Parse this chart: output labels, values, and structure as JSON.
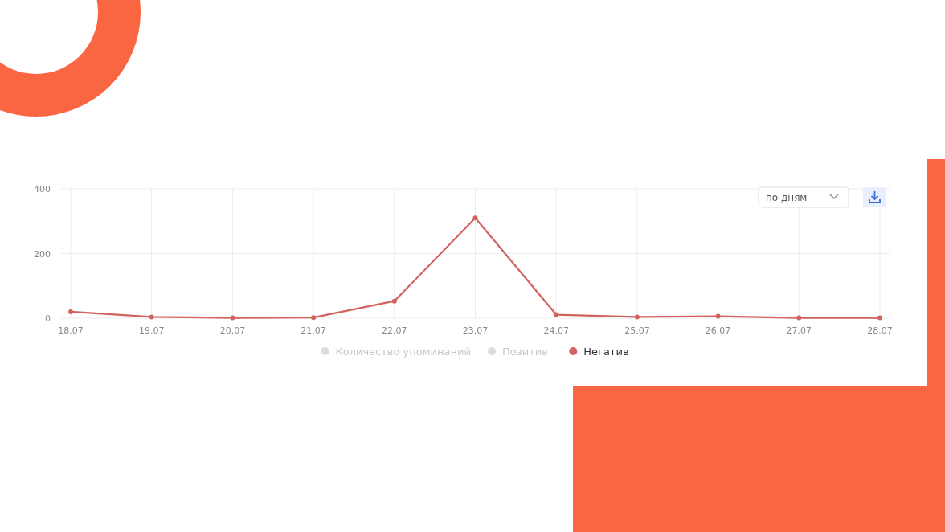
{
  "chart_data": {
    "type": "line",
    "categories": [
      "18.07",
      "19.07",
      "20.07",
      "21.07",
      "22.07",
      "23.07",
      "24.07",
      "25.07",
      "26.07",
      "27.07",
      "28.07"
    ],
    "series": [
      {
        "name": "Количество упоминаний",
        "color": "#dcdcdc",
        "values": [
          null,
          null,
          null,
          null,
          null,
          null,
          null,
          null,
          null,
          null,
          null
        ]
      },
      {
        "name": "Позитив",
        "color": "#dcdcdc",
        "values": [
          null,
          null,
          null,
          null,
          null,
          null,
          null,
          null,
          null,
          null,
          null
        ]
      },
      {
        "name": "Негатив",
        "color": "#d2625e",
        "values": [
          20,
          4,
          1,
          2,
          53,
          310,
          11,
          4,
          6,
          1,
          1
        ]
      }
    ],
    "ylim": [
      0,
      400
    ],
    "yticks": [
      0,
      200,
      400
    ],
    "grid": true,
    "legend": "bottom",
    "marker": "circle",
    "line_style": "solid",
    "annotations": [
      "по дням"
    ]
  }
}
